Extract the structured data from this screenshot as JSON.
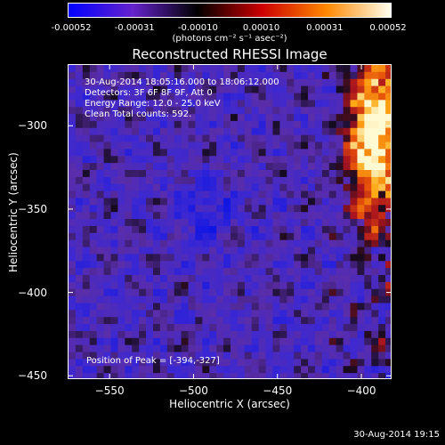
{
  "colorbar": {
    "ticks": [
      "-0.00052",
      "-0.00031",
      "-0.00010",
      "0.00010",
      "0.00031",
      "0.00052"
    ],
    "label": "(photons cm⁻² s⁻¹ asec⁻²)",
    "colors": [
      "#0000ff",
      "#6622cc",
      "#000000",
      "#cc0000",
      "#ff8800",
      "#ffffee"
    ]
  },
  "chart_data": {
    "type": "heatmap",
    "title": "Reconstructed RHESSI Image",
    "xlabel": "Heliocentric X (arcsec)",
    "ylabel": "Heliocentric Y (arcsec)",
    "xlim": [
      -575,
      -382
    ],
    "ylim": [
      -452,
      -263
    ],
    "xticks": [
      -550,
      -500,
      -450,
      -400
    ],
    "yticks": [
      -300,
      -350,
      -400,
      -450
    ],
    "xtick_labels": [
      "−550",
      "−500",
      "−450",
      "−400"
    ],
    "ytick_labels": [
      "−300",
      "−350",
      "−400",
      "−450"
    ],
    "colorbar_range": [
      -0.00052,
      0.00052
    ],
    "peak_position": [
      -394,
      -327
    ]
  },
  "info": {
    "line1": "30-Aug-2014 18:05:16.000 to 18:06:12.000",
    "line2": "Detectors: 3F 6F 8F 9F, Att 0",
    "line3": "Energy Range: 12.0 - 25.0 keV",
    "line4": "Clean    Total counts: 592.",
    "peak": "Position of Peak = [-394,-327]"
  },
  "footer": {
    "date": "30-Aug-2014 19:15"
  }
}
